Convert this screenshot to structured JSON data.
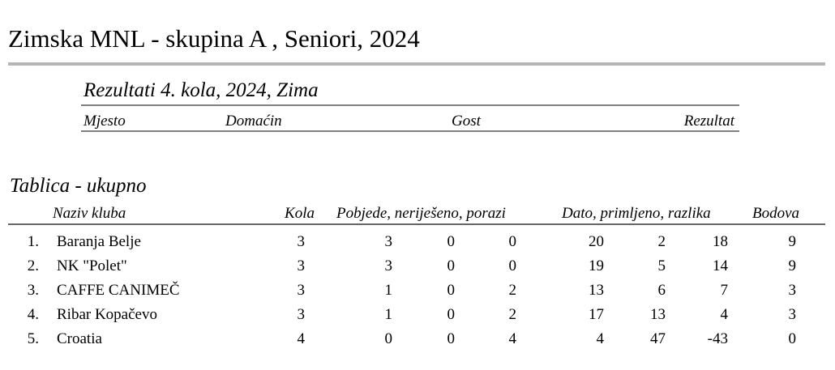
{
  "header": {
    "title": "Zimska MNL  - skupina A , Seniori, 2024"
  },
  "results": {
    "title": "Rezultati  4.  kola,  2024, Zima",
    "columns": [
      "Mjesto",
      "Domaćin",
      "Gost",
      "Rezultat"
    ]
  },
  "table": {
    "title": "Tablica - ukupno",
    "columns": [
      "Naziv kluba",
      "Kola",
      "Pobjede, neriješeno, porazi",
      "Dato, primljeno, razlika",
      "Bodova"
    ],
    "rows": [
      [
        "1.",
        "Baranja Belje",
        3,
        3,
        0,
        0,
        20,
        2,
        18,
        9
      ],
      [
        "2.",
        "NK \"Polet\"",
        3,
        3,
        0,
        0,
        19,
        5,
        14,
        9
      ],
      [
        "3.",
        "CAFFE CANIMEČ",
        3,
        1,
        0,
        2,
        13,
        6,
        7,
        3
      ],
      [
        "4.",
        "Ribar Kopačevo",
        3,
        1,
        0,
        2,
        17,
        13,
        4,
        3
      ],
      [
        "5.",
        "Croatia",
        4,
        0,
        0,
        4,
        4,
        47,
        -43,
        0
      ]
    ]
  }
}
